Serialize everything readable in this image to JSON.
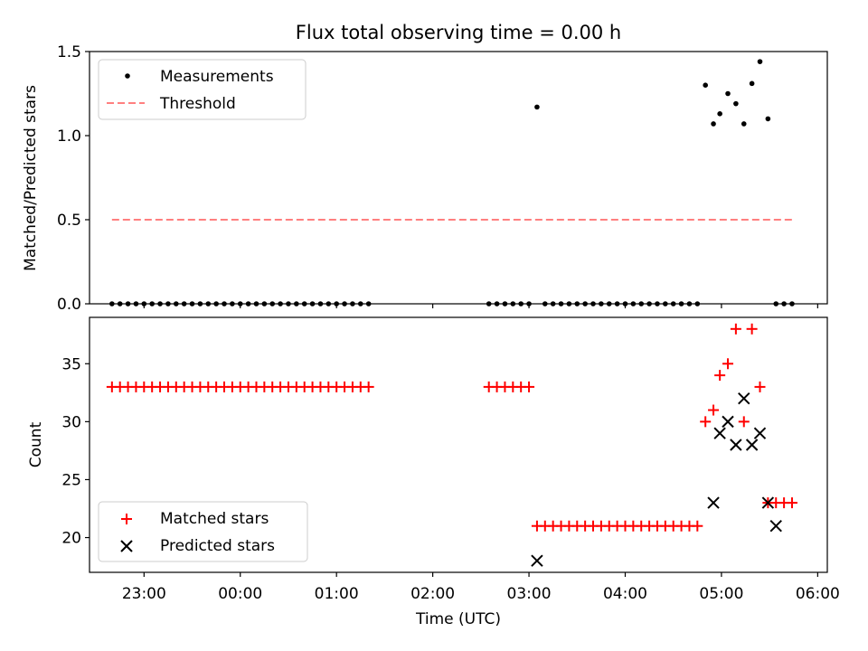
{
  "chart_data": [
    {
      "type": "scatter",
      "title": "Flux total observing time = 0.00 h",
      "xlabel": "",
      "ylabel": "Matched/Predicted stars",
      "ylim": [
        0,
        1.5
      ],
      "y_ticks": [
        "0.0",
        "0.5",
        "1.0",
        "1.5"
      ],
      "grid": false,
      "legend_position": "top-left",
      "series": [
        {
          "name": "Measurements",
          "marker": "dot",
          "color": "#000000",
          "x": [
            "22:40",
            "22:45",
            "22:50",
            "22:55",
            "23:00",
            "23:05",
            "23:10",
            "23:15",
            "23:20",
            "23:25",
            "23:30",
            "23:35",
            "23:40",
            "23:45",
            "23:50",
            "23:55",
            "00:00",
            "00:05",
            "00:10",
            "00:15",
            "00:20",
            "00:25",
            "00:30",
            "00:35",
            "00:40",
            "00:45",
            "00:50",
            "00:55",
            "01:00",
            "01:05",
            "01:10",
            "01:15",
            "01:20",
            "02:35",
            "02:40",
            "02:45",
            "02:50",
            "02:55",
            "03:00",
            "03:05",
            "03:10",
            "03:15",
            "03:20",
            "03:25",
            "03:30",
            "03:35",
            "03:40",
            "03:45",
            "03:50",
            "03:55",
            "04:00",
            "04:05",
            "04:10",
            "04:15",
            "04:20",
            "04:25",
            "04:30",
            "04:35",
            "04:40",
            "04:45",
            "04:50",
            "04:55",
            "04:59",
            "05:04",
            "05:09",
            "05:14",
            "05:19",
            "05:24",
            "05:29",
            "05:34",
            "05:39",
            "05:44"
          ],
          "y": [
            0,
            0,
            0,
            0,
            0,
            0,
            0,
            0,
            0,
            0,
            0,
            0,
            0,
            0,
            0,
            0,
            0,
            0,
            0,
            0,
            0,
            0,
            0,
            0,
            0,
            0,
            0,
            0,
            0,
            0,
            0,
            0,
            0,
            0,
            0,
            0,
            0,
            0,
            0,
            1.17,
            0,
            0,
            0,
            0,
            0,
            0,
            0,
            0,
            0,
            0,
            0,
            0,
            0,
            0,
            0,
            0,
            0,
            0,
            0,
            0,
            1.3,
            1.07,
            1.13,
            1.25,
            1.19,
            1.07,
            1.31,
            1.44,
            1.1,
            0,
            0,
            0
          ]
        },
        {
          "name": "Threshold",
          "marker": "dashed-line",
          "color": "#ff7f7f",
          "x": [
            "22:40",
            "05:44"
          ],
          "y": [
            0.5,
            0.5
          ]
        }
      ]
    },
    {
      "type": "scatter",
      "title": "",
      "xlabel": "Time (UTC)",
      "ylabel": "Count",
      "ylim": [
        17,
        39
      ],
      "y_ticks": [
        "20",
        "25",
        "30",
        "35"
      ],
      "x_ticks": [
        "23:00",
        "00:00",
        "01:00",
        "02:00",
        "03:00",
        "04:00",
        "05:00",
        "06:00"
      ],
      "xlim": [
        "22:26",
        "06:06"
      ],
      "grid": false,
      "legend_position": "bottom-left",
      "series": [
        {
          "name": "Matched stars",
          "marker": "plus",
          "color": "#ff0000",
          "x": [
            "22:40",
            "22:45",
            "22:50",
            "22:55",
            "23:00",
            "23:05",
            "23:10",
            "23:15",
            "23:20",
            "23:25",
            "23:30",
            "23:35",
            "23:40",
            "23:45",
            "23:50",
            "23:55",
            "00:00",
            "00:05",
            "00:10",
            "00:15",
            "00:20",
            "00:25",
            "00:30",
            "00:35",
            "00:40",
            "00:45",
            "00:50",
            "00:55",
            "01:00",
            "01:05",
            "01:10",
            "01:15",
            "01:20",
            "02:35",
            "02:40",
            "02:45",
            "02:50",
            "02:55",
            "03:00",
            "03:05",
            "03:10",
            "03:15",
            "03:20",
            "03:25",
            "03:30",
            "03:35",
            "03:40",
            "03:45",
            "03:50",
            "03:55",
            "04:00",
            "04:05",
            "04:10",
            "04:15",
            "04:20",
            "04:25",
            "04:30",
            "04:35",
            "04:40",
            "04:45",
            "04:50",
            "04:55",
            "04:59",
            "05:04",
            "05:09",
            "05:14",
            "05:19",
            "05:24",
            "05:29",
            "05:34",
            "05:39",
            "05:44"
          ],
          "y": [
            33,
            33,
            33,
            33,
            33,
            33,
            33,
            33,
            33,
            33,
            33,
            33,
            33,
            33,
            33,
            33,
            33,
            33,
            33,
            33,
            33,
            33,
            33,
            33,
            33,
            33,
            33,
            33,
            33,
            33,
            33,
            33,
            33,
            33,
            33,
            33,
            33,
            33,
            33,
            21,
            21,
            21,
            21,
            21,
            21,
            21,
            21,
            21,
            21,
            21,
            21,
            21,
            21,
            21,
            21,
            21,
            21,
            21,
            21,
            21,
            30,
            31,
            34,
            35,
            38,
            30,
            38,
            33,
            23,
            23,
            23,
            23
          ]
        },
        {
          "name": "Predicted stars",
          "marker": "x",
          "color": "#000000",
          "x": [
            "03:05",
            "04:55",
            "04:59",
            "05:04",
            "05:09",
            "05:14",
            "05:19",
            "05:24",
            "05:29",
            "05:34"
          ],
          "y": [
            18,
            23,
            29,
            30,
            28,
            32,
            28,
            29,
            23,
            21
          ]
        }
      ]
    }
  ]
}
